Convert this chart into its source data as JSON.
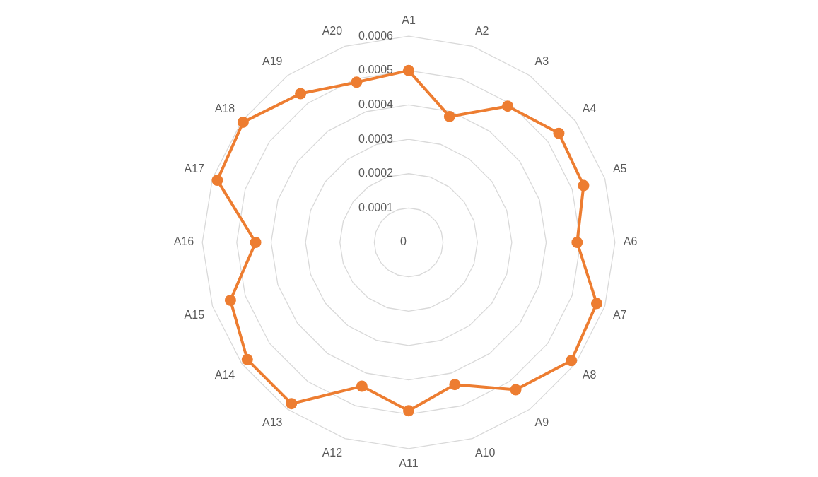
{
  "chart_data": {
    "type": "radar",
    "categories": [
      "A1",
      "A2",
      "A3",
      "A4",
      "A5",
      "A6",
      "A7",
      "A8",
      "A9",
      "A10",
      "A11",
      "A12",
      "A13",
      "A14",
      "A15",
      "A16",
      "A17",
      "A18",
      "A19",
      "A20"
    ],
    "series": [
      {
        "color": "#ed7d31",
        "values": [
          0.0005,
          0.000385,
          0.00049,
          0.00054,
          0.000535,
          0.00049,
          0.000575,
          0.000585,
          0.00053,
          0.000435,
          0.00049,
          0.00044,
          0.00058,
          0.00058,
          0.000545,
          0.000445,
          0.000585,
          0.000595,
          0.000535,
          0.00049
        ]
      }
    ],
    "ylim": [
      0,
      0.0006
    ],
    "yticks": [
      0,
      0.0001,
      0.0002,
      0.0003,
      0.0004,
      0.0005,
      0.0006
    ],
    "grid": true,
    "marker": "circle"
  }
}
